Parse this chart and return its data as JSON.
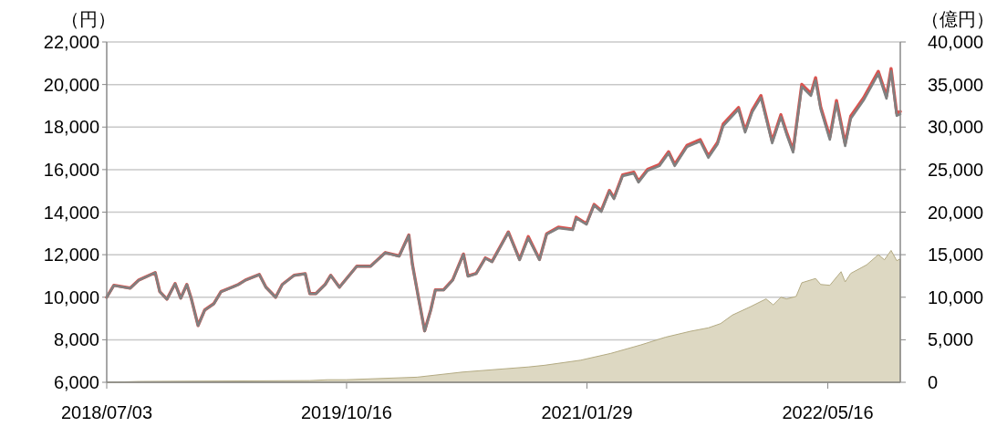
{
  "chart_data": {
    "type": "line",
    "ylabel": "（円）",
    "y2label": "（億円）",
    "x": [
      "2018-07-03",
      "2018-07-17",
      "2018-08-18",
      "2018-09-04",
      "2018-10-06",
      "2018-10-15",
      "2018-10-29",
      "2018-11-14",
      "2018-11-25",
      "2018-12-07",
      "2018-12-16",
      "2018-12-29",
      "2019-01-11",
      "2019-01-29",
      "2019-02-12",
      "2019-03-18",
      "2019-04-01",
      "2019-04-28",
      "2019-05-11",
      "2019-05-30",
      "2019-06-12",
      "2019-07-05",
      "2019-07-27",
      "2019-08-05",
      "2019-08-17",
      "2019-09-04",
      "2019-09-15",
      "2019-10-02",
      "2019-11-05",
      "2019-12-02",
      "2019-12-31",
      "2020-01-27",
      "2020-02-15",
      "2020-02-22",
      "2020-03-06",
      "2020-03-17",
      "2020-03-29",
      "2020-04-07",
      "2020-04-23",
      "2020-05-11",
      "2020-06-01",
      "2020-06-10",
      "2020-06-26",
      "2020-07-14",
      "2020-07-27",
      "2020-08-28",
      "2020-09-19",
      "2020-10-06",
      "2020-10-28",
      "2020-11-11",
      "2020-12-04",
      "2021-01-01",
      "2021-01-08",
      "2021-01-28",
      "2021-02-12",
      "2021-02-26",
      "2021-03-14",
      "2021-03-23",
      "2021-04-09",
      "2021-05-01",
      "2021-05-10",
      "2021-05-28",
      "2021-06-20",
      "2021-07-08",
      "2021-07-20",
      "2021-08-13",
      "2021-09-08",
      "2021-09-24",
      "2021-10-12",
      "2021-10-23",
      "2021-11-22",
      "2021-12-05",
      "2021-12-19",
      "2022-01-05",
      "2022-01-27",
      "2022-02-13",
      "2022-02-24",
      "2022-03-09",
      "2022-03-26",
      "2022-04-13",
      "2022-04-22",
      "2022-05-02",
      "2022-05-20",
      "2022-06-02",
      "2022-06-19",
      "2022-06-30",
      "2022-07-25",
      "2022-08-23",
      "2022-09-08",
      "2022-09-17",
      "2022-09-28",
      "2022-10-05"
    ],
    "series": [
      {
        "type": "area",
        "axis": "y2",
        "color": "#ddd8c2",
        "x": [
          "2018-07-03",
          "2018-09-05",
          "2019-08-05",
          "2019-09-09",
          "2019-10-15",
          "2020-03-02",
          "2020-05-30",
          "2020-10-06",
          "2020-11-07",
          "2021-01-17",
          "2021-03-17",
          "2021-05-15",
          "2021-07-02",
          "2021-08-20",
          "2021-09-24",
          "2021-10-18",
          "2021-11-10",
          "2021-12-16",
          "2022-01-15",
          "2022-01-29",
          "2022-02-13",
          "2022-02-24",
          "2022-03-15",
          "2022-03-26",
          "2022-04-22",
          "2022-05-02",
          "2022-05-20",
          "2022-06-11",
          "2022-06-19",
          "2022-06-30",
          "2022-07-31",
          "2022-08-23",
          "2022-09-04",
          "2022-09-17",
          "2022-09-28",
          "2022-10-05"
        ],
        "values": [
          0,
          100,
          200,
          300,
          300,
          600,
          1200,
          1800,
          2000,
          2600,
          3400,
          4400,
          5300,
          6000,
          6400,
          6900,
          7900,
          8900,
          9800,
          9100,
          10000,
          9800,
          10100,
          11700,
          12200,
          11500,
          11400,
          13000,
          11800,
          12800,
          13800,
          15000,
          14400,
          15500,
          14300,
          14500
        ]
      },
      {
        "color": "#d9534f",
        "values": [
          10000,
          10560,
          10430,
          10810,
          11160,
          10260,
          9910,
          10640,
          9960,
          10600,
          9910,
          8670,
          9400,
          9700,
          10260,
          10600,
          10810,
          11070,
          10470,
          10000,
          10600,
          11030,
          11110,
          10170,
          10170,
          10600,
          11030,
          10470,
          11460,
          11460,
          12100,
          11940,
          12930,
          11550,
          9840,
          8420,
          9410,
          10350,
          10350,
          10820,
          12030,
          11000,
          11120,
          11850,
          11680,
          13070,
          11780,
          12850,
          11780,
          12980,
          13290,
          13200,
          13760,
          13460,
          14360,
          14070,
          15020,
          14670,
          15750,
          15880,
          15460,
          16010,
          16240,
          16840,
          16240,
          17140,
          17410,
          16640,
          17280,
          18140,
          18920,
          17840,
          18800,
          19480,
          17340,
          18580,
          17770,
          16910,
          20010,
          19580,
          20320,
          18950,
          17530,
          19250,
          17230,
          18520,
          19370,
          20620,
          19460,
          20750,
          18650,
          18730
        ]
      },
      {
        "color": "#808080",
        "values": [
          9990,
          10550,
          10420,
          10800,
          11150,
          10250,
          9900,
          10630,
          9950,
          10590,
          9900,
          8660,
          9390,
          9690,
          10250,
          10590,
          10800,
          11060,
          10460,
          9990,
          10590,
          11020,
          11100,
          10160,
          10160,
          10590,
          11020,
          10460,
          11450,
          11450,
          12090,
          11920,
          12910,
          11530,
          9820,
          8400,
          9390,
          10330,
          10330,
          10800,
          12010,
          10980,
          11100,
          11830,
          11660,
          13040,
          11750,
          12780,
          11750,
          12950,
          13250,
          13160,
          13720,
          13420,
          14320,
          14020,
          14970,
          14620,
          15700,
          15820,
          15400,
          15950,
          16170,
          16770,
          16170,
          17070,
          17330,
          16560,
          17200,
          18050,
          18830,
          17750,
          18700,
          19380,
          17240,
          18480,
          17670,
          16810,
          19900,
          19470,
          20200,
          18830,
          17410,
          19130,
          17110,
          18400,
          19250,
          20500,
          19340,
          20630,
          18530,
          18610
        ]
      }
    ],
    "xlim": [
      "2018-07-03",
      "2022-10-05"
    ],
    "xticks": [
      {
        "value": "2018-07-03",
        "label": "2018/07/03"
      },
      {
        "value": "2019-10-16",
        "label": "2019/10/16"
      },
      {
        "value": "2021-01-29",
        "label": "2021/01/29"
      },
      {
        "value": "2022-05-16",
        "label": "2022/05/16"
      }
    ],
    "ylim": [
      6000,
      22000
    ],
    "yticks": [
      {
        "value": 6000,
        "label": "6,000"
      },
      {
        "value": 8000,
        "label": "8,000"
      },
      {
        "value": 10000,
        "label": "10,000"
      },
      {
        "value": 12000,
        "label": "12,000"
      },
      {
        "value": 14000,
        "label": "14,000"
      },
      {
        "value": 16000,
        "label": "16,000"
      },
      {
        "value": 18000,
        "label": "18,000"
      },
      {
        "value": 20000,
        "label": "20,000"
      },
      {
        "value": 22000,
        "label": "22,000"
      }
    ],
    "y2lim": [
      0,
      40000
    ],
    "y2ticks": [
      0,
      {
        "value": 5000,
        "label": "5,000"
      },
      {
        "value": 10000,
        "label": "10,000"
      },
      {
        "value": 15000,
        "label": "15,000"
      },
      {
        "value": 20000,
        "label": "20,000"
      },
      {
        "value": 25000,
        "label": "25,000"
      },
      {
        "value": 30000,
        "label": "30,000"
      },
      {
        "value": 35000,
        "label": "35,000"
      },
      {
        "value": 40000,
        "label": "40,000"
      }
    ],
    "grid": "y",
    "marker": "none",
    "line_style": "solid"
  }
}
